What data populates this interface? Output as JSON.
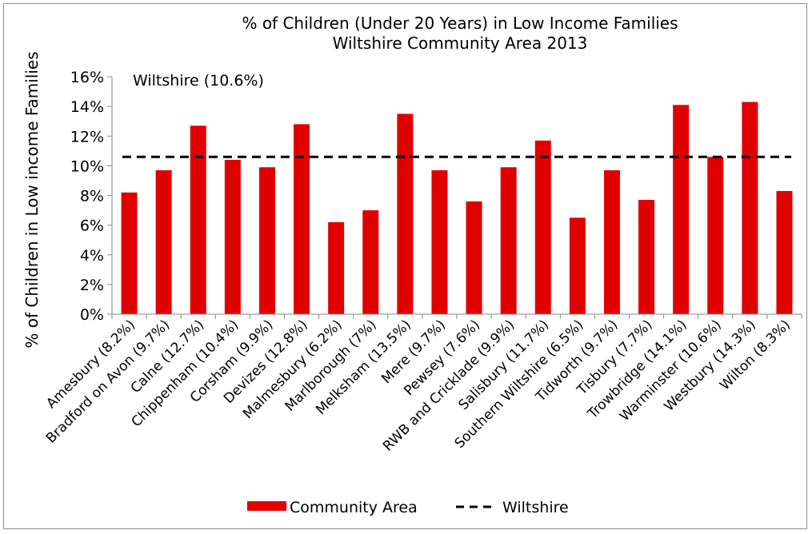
{
  "chart_data": {
    "type": "bar",
    "title": "% of Children (Under 20 Years) in Low Income Families",
    "subtitle": "Wiltshire Community Area 2013",
    "xlabel": "",
    "ylabel": "% of Children in Low income Families",
    "ylim": [
      0,
      16
    ],
    "yticks": [
      "0%",
      "2%",
      "4%",
      "6%",
      "8%",
      "10%",
      "12%",
      "14%",
      "16%"
    ],
    "categories": [
      "Amesbury (8.2%)",
      "Bradford on Avon (9.7%)",
      "Calne (12.7%)",
      "Chippenham (10.4%)",
      "Corsham (9.9%)",
      "Devizes (12.8%)",
      "Malmesbury (6.2%)",
      "Marlborough (7%)",
      "Melksham (13.5%)",
      "Mere (9.7%)",
      "Pewsey (7.6%)",
      "RWB and Cricklade (9.9%)",
      "Salisbury (11.7%)",
      "Southern Wiltshire (6.5%)",
      "Tidworth (9.7%)",
      "Tisbury (7.7%)",
      "Trowbridge (14.1%)",
      "Warminster (10.6%)",
      "Westbury (14.3%)",
      "Wilton (8.3%)"
    ],
    "series": [
      {
        "name": "Community Area",
        "values": [
          8.2,
          9.7,
          12.7,
          10.4,
          9.9,
          12.8,
          6.2,
          7.0,
          13.5,
          9.7,
          7.6,
          9.9,
          11.7,
          6.5,
          9.7,
          7.7,
          14.1,
          10.6,
          14.3,
          8.3
        ],
        "color": "#e00000"
      },
      {
        "name": "Wiltshire",
        "value": 10.6,
        "style": "dashed-line",
        "color": "#000000"
      }
    ],
    "annotation": "Wiltshire (10.6%)",
    "grid": false,
    "legend_position": "bottom"
  }
}
